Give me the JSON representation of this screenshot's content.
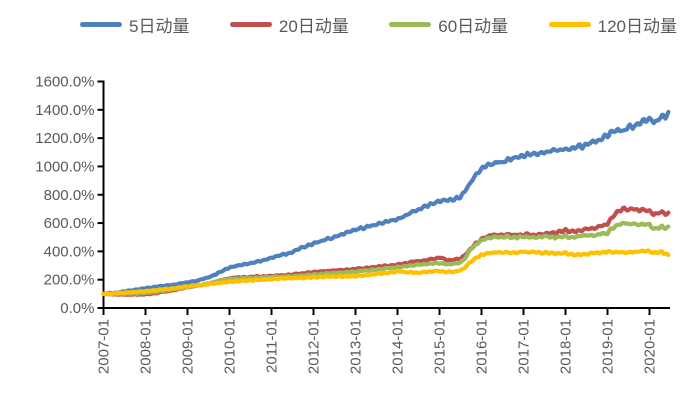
{
  "chart_data": {
    "type": "line",
    "title": "",
    "xlabel": "",
    "ylabel": "",
    "grid": "off",
    "legend_position": "top",
    "ylim": [
      0,
      1600
    ],
    "y_tick_step": 200,
    "y_tick_labels": [
      "0.0%",
      "200.0%",
      "400.0%",
      "600.0%",
      "800.0%",
      "1000.0%",
      "1200.0%",
      "1400.0%",
      "1600.0%"
    ],
    "x_tick_labels": [
      "2007-01",
      "2008-01",
      "2009-01",
      "2010-01",
      "2011-01",
      "2012-01",
      "2013-01",
      "2014-01",
      "2015-01",
      "2016-01",
      "2017-01",
      "2018-01",
      "2019-01",
      "2020-01"
    ],
    "x_range_years": [
      2007.0,
      2020.45
    ],
    "colors": {
      "axis": "#000000",
      "tick_label": "#595959",
      "legend_text": "#595959",
      "background": "#FFFFFF"
    },
    "series": [
      {
        "name": "5日动量",
        "color": "#4F81BD",
        "points": [
          [
            2007.0,
            100
          ],
          [
            2007.25,
            107
          ],
          [
            2007.5,
            116
          ],
          [
            2007.75,
            128
          ],
          [
            2008.0,
            140
          ],
          [
            2008.25,
            150
          ],
          [
            2008.5,
            158
          ],
          [
            2008.75,
            168
          ],
          [
            2009.0,
            180
          ],
          [
            2009.25,
            195
          ],
          [
            2009.5,
            215
          ],
          [
            2009.75,
            250
          ],
          [
            2010.0,
            288
          ],
          [
            2010.25,
            302
          ],
          [
            2010.5,
            316
          ],
          [
            2010.75,
            334
          ],
          [
            2011.0,
            356
          ],
          [
            2011.25,
            375
          ],
          [
            2011.5,
            395
          ],
          [
            2011.75,
            430
          ],
          [
            2012.0,
            458
          ],
          [
            2012.25,
            478
          ],
          [
            2012.5,
            500
          ],
          [
            2012.75,
            528
          ],
          [
            2013.0,
            552
          ],
          [
            2013.25,
            572
          ],
          [
            2013.5,
            590
          ],
          [
            2013.75,
            608
          ],
          [
            2014.0,
            628
          ],
          [
            2014.25,
            662
          ],
          [
            2014.5,
            700
          ],
          [
            2014.75,
            728
          ],
          [
            2015.0,
            752
          ],
          [
            2015.1,
            765
          ],
          [
            2015.2,
            758
          ],
          [
            2015.35,
            770
          ],
          [
            2015.5,
            788
          ],
          [
            2015.6,
            820
          ],
          [
            2015.75,
            890
          ],
          [
            2015.9,
            950
          ],
          [
            2016.0,
            980
          ],
          [
            2016.1,
            1000
          ],
          [
            2016.25,
            1022
          ],
          [
            2016.4,
            1032
          ],
          [
            2016.5,
            1028
          ],
          [
            2016.6,
            1042
          ],
          [
            2016.75,
            1058
          ],
          [
            2017.0,
            1075
          ],
          [
            2017.25,
            1088
          ],
          [
            2017.5,
            1098
          ],
          [
            2017.75,
            1112
          ],
          [
            2018.0,
            1128
          ],
          [
            2018.1,
            1120
          ],
          [
            2018.25,
            1142
          ],
          [
            2018.4,
            1138
          ],
          [
            2018.5,
            1158
          ],
          [
            2018.75,
            1178
          ],
          [
            2019.0,
            1215
          ],
          [
            2019.1,
            1248
          ],
          [
            2019.25,
            1262
          ],
          [
            2019.4,
            1250
          ],
          [
            2019.5,
            1285
          ],
          [
            2019.6,
            1272
          ],
          [
            2019.75,
            1305
          ],
          [
            2019.9,
            1322
          ],
          [
            2020.0,
            1340
          ],
          [
            2020.1,
            1308
          ],
          [
            2020.2,
            1325
          ],
          [
            2020.3,
            1352
          ],
          [
            2020.38,
            1340
          ],
          [
            2020.45,
            1385
          ]
        ]
      },
      {
        "name": "20日动量",
        "color": "#C0504D",
        "points": [
          [
            2007.0,
            100
          ],
          [
            2007.25,
            96
          ],
          [
            2007.5,
            94
          ],
          [
            2007.75,
            94
          ],
          [
            2008.0,
            97
          ],
          [
            2008.25,
            106
          ],
          [
            2008.5,
            118
          ],
          [
            2008.75,
            132
          ],
          [
            2009.0,
            146
          ],
          [
            2009.25,
            158
          ],
          [
            2009.5,
            172
          ],
          [
            2009.75,
            192
          ],
          [
            2010.0,
            210
          ],
          [
            2010.25,
            216
          ],
          [
            2010.5,
            220
          ],
          [
            2010.75,
            222
          ],
          [
            2011.0,
            226
          ],
          [
            2011.25,
            230
          ],
          [
            2011.5,
            236
          ],
          [
            2011.75,
            245
          ],
          [
            2012.0,
            254
          ],
          [
            2012.25,
            260
          ],
          [
            2012.5,
            266
          ],
          [
            2012.75,
            271
          ],
          [
            2013.0,
            276
          ],
          [
            2013.25,
            283
          ],
          [
            2013.5,
            290
          ],
          [
            2013.75,
            298
          ],
          [
            2014.0,
            306
          ],
          [
            2014.25,
            318
          ],
          [
            2014.5,
            330
          ],
          [
            2014.75,
            342
          ],
          [
            2015.0,
            355
          ],
          [
            2015.1,
            350
          ],
          [
            2015.2,
            338
          ],
          [
            2015.35,
            342
          ],
          [
            2015.5,
            348
          ],
          [
            2015.6,
            372
          ],
          [
            2015.75,
            420
          ],
          [
            2015.9,
            462
          ],
          [
            2016.0,
            488
          ],
          [
            2016.1,
            505
          ],
          [
            2016.25,
            515
          ],
          [
            2016.4,
            518
          ],
          [
            2016.5,
            514
          ],
          [
            2016.6,
            520
          ],
          [
            2016.75,
            514
          ],
          [
            2017.0,
            519
          ],
          [
            2017.25,
            514
          ],
          [
            2017.5,
            521
          ],
          [
            2017.75,
            534
          ],
          [
            2018.0,
            548
          ],
          [
            2018.1,
            540
          ],
          [
            2018.25,
            546
          ],
          [
            2018.4,
            552
          ],
          [
            2018.5,
            556
          ],
          [
            2018.75,
            570
          ],
          [
            2019.0,
            592
          ],
          [
            2019.1,
            640
          ],
          [
            2019.25,
            682
          ],
          [
            2019.4,
            700
          ],
          [
            2019.5,
            692
          ],
          [
            2019.6,
            702
          ],
          [
            2019.75,
            690
          ],
          [
            2019.9,
            695
          ],
          [
            2020.0,
            685
          ],
          [
            2020.1,
            660
          ],
          [
            2020.2,
            668
          ],
          [
            2020.3,
            680
          ],
          [
            2020.38,
            664
          ],
          [
            2020.45,
            674
          ]
        ]
      },
      {
        "name": "60日动量",
        "color": "#9BBB59",
        "points": [
          [
            2007.0,
            100
          ],
          [
            2007.25,
            100
          ],
          [
            2007.5,
            101
          ],
          [
            2007.75,
            103
          ],
          [
            2008.0,
            106
          ],
          [
            2008.25,
            114
          ],
          [
            2008.5,
            124
          ],
          [
            2008.75,
            136
          ],
          [
            2009.0,
            150
          ],
          [
            2009.25,
            160
          ],
          [
            2009.5,
            174
          ],
          [
            2009.75,
            190
          ],
          [
            2010.0,
            203
          ],
          [
            2010.25,
            208
          ],
          [
            2010.5,
            212
          ],
          [
            2010.75,
            214
          ],
          [
            2011.0,
            217
          ],
          [
            2011.25,
            220
          ],
          [
            2011.5,
            224
          ],
          [
            2011.75,
            230
          ],
          [
            2012.0,
            236
          ],
          [
            2012.25,
            241
          ],
          [
            2012.5,
            246
          ],
          [
            2012.75,
            252
          ],
          [
            2013.0,
            258
          ],
          [
            2013.25,
            264
          ],
          [
            2013.5,
            271
          ],
          [
            2013.75,
            280
          ],
          [
            2014.0,
            289
          ],
          [
            2014.25,
            297
          ],
          [
            2014.5,
            306
          ],
          [
            2014.75,
            312
          ],
          [
            2015.0,
            318
          ],
          [
            2015.1,
            315
          ],
          [
            2015.2,
            308
          ],
          [
            2015.35,
            312
          ],
          [
            2015.5,
            322
          ],
          [
            2015.6,
            350
          ],
          [
            2015.75,
            415
          ],
          [
            2015.9,
            458
          ],
          [
            2016.0,
            478
          ],
          [
            2016.1,
            492
          ],
          [
            2016.25,
            500
          ],
          [
            2016.4,
            504
          ],
          [
            2016.5,
            500
          ],
          [
            2016.6,
            506
          ],
          [
            2016.75,
            496
          ],
          [
            2017.0,
            504
          ],
          [
            2017.25,
            497
          ],
          [
            2017.5,
            505
          ],
          [
            2017.75,
            499
          ],
          [
            2018.0,
            507
          ],
          [
            2018.1,
            499
          ],
          [
            2018.25,
            503
          ],
          [
            2018.4,
            508
          ],
          [
            2018.5,
            511
          ],
          [
            2018.75,
            516
          ],
          [
            2019.0,
            531
          ],
          [
            2019.1,
            565
          ],
          [
            2019.25,
            588
          ],
          [
            2019.4,
            600
          ],
          [
            2019.5,
            592
          ],
          [
            2019.6,
            600
          ],
          [
            2019.75,
            590
          ],
          [
            2019.9,
            592
          ],
          [
            2020.0,
            588
          ],
          [
            2020.1,
            556
          ],
          [
            2020.2,
            562
          ],
          [
            2020.3,
            578
          ],
          [
            2020.38,
            565
          ],
          [
            2020.45,
            575
          ]
        ]
      },
      {
        "name": "120日动量",
        "color": "#FFC000",
        "points": [
          [
            2007.0,
            100
          ],
          [
            2007.25,
            103
          ],
          [
            2007.5,
            108
          ],
          [
            2007.75,
            113
          ],
          [
            2008.0,
            118
          ],
          [
            2008.25,
            126
          ],
          [
            2008.5,
            134
          ],
          [
            2008.75,
            143
          ],
          [
            2009.0,
            152
          ],
          [
            2009.25,
            161
          ],
          [
            2009.5,
            170
          ],
          [
            2009.75,
            178
          ],
          [
            2010.0,
            185
          ],
          [
            2010.25,
            190
          ],
          [
            2010.5,
            195
          ],
          [
            2010.75,
            200
          ],
          [
            2011.0,
            205
          ],
          [
            2011.25,
            208
          ],
          [
            2011.5,
            210
          ],
          [
            2011.75,
            213
          ],
          [
            2012.0,
            216
          ],
          [
            2012.25,
            219
          ],
          [
            2012.5,
            222
          ],
          [
            2012.75,
            224
          ],
          [
            2013.0,
            226
          ],
          [
            2013.25,
            232
          ],
          [
            2013.5,
            240
          ],
          [
            2013.75,
            250
          ],
          [
            2014.0,
            258
          ],
          [
            2014.25,
            253
          ],
          [
            2014.5,
            250
          ],
          [
            2014.75,
            255
          ],
          [
            2015.0,
            261
          ],
          [
            2015.1,
            258
          ],
          [
            2015.2,
            254
          ],
          [
            2015.35,
            258
          ],
          [
            2015.5,
            268
          ],
          [
            2015.6,
            285
          ],
          [
            2015.75,
            330
          ],
          [
            2015.9,
            360
          ],
          [
            2016.0,
            374
          ],
          [
            2016.1,
            382
          ],
          [
            2016.25,
            390
          ],
          [
            2016.4,
            394
          ],
          [
            2016.5,
            394
          ],
          [
            2016.6,
            392
          ],
          [
            2016.75,
            390
          ],
          [
            2017.0,
            397
          ],
          [
            2017.25,
            394
          ],
          [
            2017.5,
            390
          ],
          [
            2017.75,
            386
          ],
          [
            2018.0,
            388
          ],
          [
            2018.1,
            380
          ],
          [
            2018.25,
            376
          ],
          [
            2018.4,
            380
          ],
          [
            2018.5,
            382
          ],
          [
            2018.75,
            390
          ],
          [
            2019.0,
            397
          ],
          [
            2019.1,
            396
          ],
          [
            2019.25,
            394
          ],
          [
            2019.4,
            390
          ],
          [
            2019.5,
            391
          ],
          [
            2019.75,
            399
          ],
          [
            2019.9,
            402
          ],
          [
            2020.0,
            404
          ],
          [
            2020.1,
            390
          ],
          [
            2020.2,
            392
          ],
          [
            2020.3,
            396
          ],
          [
            2020.38,
            385
          ],
          [
            2020.45,
            374
          ]
        ]
      }
    ]
  }
}
